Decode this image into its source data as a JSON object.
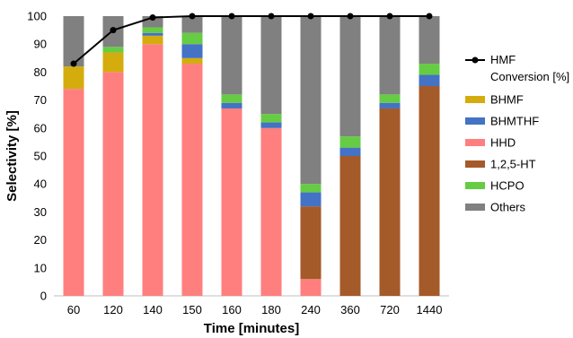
{
  "chart_data": {
    "type": "bar",
    "stacked": true,
    "categories": [
      "60",
      "120",
      "140",
      "150",
      "160",
      "180",
      "240",
      "360",
      "720",
      "1440"
    ],
    "xlabel": "Time [minutes]",
    "ylabel": "Selectivity [%]",
    "ylim": [
      0,
      100
    ],
    "yticks": [
      0,
      10,
      20,
      30,
      40,
      50,
      60,
      70,
      80,
      90,
      100
    ],
    "grid": false,
    "legend_position": "right",
    "series": [
      {
        "name": "HHD",
        "color": "#ff7f7f",
        "values": [
          74,
          80,
          90,
          83,
          67,
          60,
          6,
          0,
          0,
          0
        ]
      },
      {
        "name": "1,2,5-HT",
        "color": "#a55a2a",
        "values": [
          0,
          0,
          0,
          0,
          0,
          0,
          26,
          50,
          67,
          75
        ]
      },
      {
        "name": "BHMF",
        "color": "#d4ac0d",
        "values": [
          8,
          7,
          3,
          2,
          0,
          0,
          0,
          0,
          0,
          0
        ]
      },
      {
        "name": "BHMTHF",
        "color": "#4472c4",
        "values": [
          0,
          0,
          1,
          5,
          2,
          2,
          5,
          3,
          2,
          4
        ]
      },
      {
        "name": "HCPO",
        "color": "#66cc44",
        "values": [
          0,
          2,
          2,
          4,
          3,
          3,
          3,
          4,
          3,
          4
        ]
      },
      {
        "name": "Others",
        "color": "#808080",
        "values": [
          18,
          11,
          4,
          6,
          28,
          35,
          60,
          43,
          28,
          17
        ]
      }
    ],
    "line": {
      "name": "HMF Conversion [%]",
      "color": "#000000",
      "values": [
        83,
        95,
        99.5,
        100,
        100,
        100,
        100,
        100,
        100,
        100
      ]
    },
    "legend_order": [
      "HMF Conversion [%]",
      "BHMF",
      "BHMTHF",
      "HHD",
      "1,2,5-HT",
      "HCPO",
      "Others"
    ]
  }
}
